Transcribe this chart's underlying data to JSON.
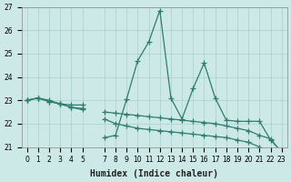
{
  "xlabel": "Humidex (Indice chaleur)",
  "x_seq": [
    0,
    1,
    2,
    3,
    4,
    5,
    6,
    7,
    8,
    9,
    10,
    11,
    12,
    13,
    14,
    15,
    16,
    17,
    18,
    19,
    20,
    21,
    22,
    23
  ],
  "xtick_pos": [
    0,
    1,
    2,
    3,
    4,
    5,
    7,
    8,
    9,
    10,
    11,
    12,
    13,
    14,
    15,
    16,
    17,
    18,
    19,
    20,
    21,
    22,
    23
  ],
  "xtick_labels": [
    "0",
    "1",
    "2",
    "3",
    "4",
    "5",
    "7",
    "8",
    "9",
    "10",
    "11",
    "12",
    "13",
    "14",
    "15",
    "16",
    "17",
    "18",
    "19",
    "20",
    "21",
    "22",
    "23"
  ],
  "y1": [
    23.0,
    23.1,
    23.0,
    22.85,
    22.8,
    22.8,
    null,
    21.4,
    21.5,
    23.05,
    24.7,
    25.5,
    26.85,
    23.1,
    22.2,
    23.5,
    24.6,
    23.1,
    22.15,
    22.1,
    22.1,
    22.1,
    21.3,
    20.8
  ],
  "y2": [
    23.0,
    23.1,
    22.95,
    22.85,
    22.7,
    22.65,
    null,
    22.5,
    22.45,
    22.4,
    22.35,
    22.3,
    22.25,
    22.2,
    22.15,
    22.1,
    22.05,
    22.0,
    21.9,
    21.8,
    21.7,
    21.5,
    21.35,
    20.75
  ],
  "y3": [
    23.0,
    23.1,
    22.95,
    22.85,
    22.7,
    22.6,
    null,
    22.2,
    22.0,
    21.9,
    21.8,
    21.75,
    21.7,
    21.65,
    21.6,
    21.55,
    21.5,
    21.45,
    21.4,
    21.3,
    21.2,
    21.0,
    20.75,
    20.5
  ],
  "line_color": "#2e7d6e",
  "bg_color": "#cce9e8",
  "grid_color": "#aacece",
  "ylim": [
    21.0,
    27.0
  ],
  "xlim": [
    -0.5,
    23.5
  ],
  "yticks": [
    21,
    22,
    23,
    24,
    25,
    26,
    27
  ],
  "marker": "+",
  "markersize": 4,
  "linewidth": 0.9,
  "xlabel_fontsize": 7,
  "tick_fontsize": 5.5
}
